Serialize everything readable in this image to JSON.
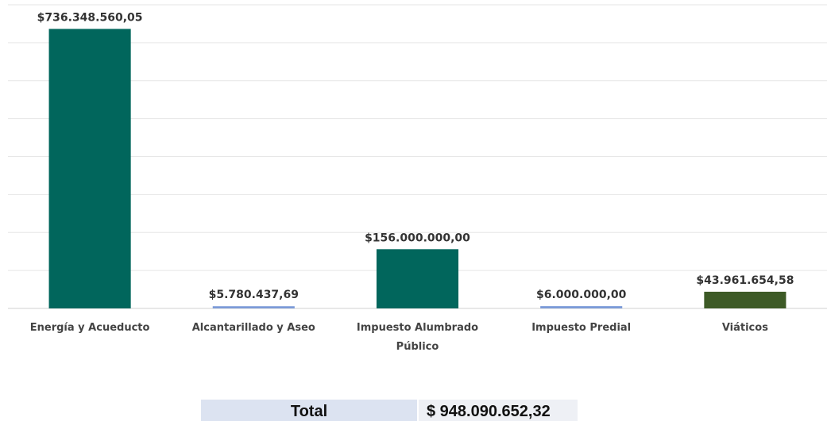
{
  "chart_data": {
    "type": "bar",
    "categories": [
      "Energía y Acueducto",
      "Alcantarillado y Aseo",
      "Impuesto Alumbrado Público",
      "Impuesto Predial",
      "Viáticos"
    ],
    "values": [
      736348560.05,
      5780437.69,
      156000000,
      6000000,
      43961654.58
    ],
    "value_labels": [
      "$736.348.560,05",
      "$5.780.437,69",
      "$156.000.000,00",
      "$6.000.000,00",
      "$43.961.654,58"
    ],
    "colors": [
      "#01665c",
      "#7c9bd8",
      "#01665c",
      "#7c9bd8",
      "#3d5a26"
    ],
    "ylim": [
      0,
      800000000
    ],
    "yticks": [
      0,
      100000000,
      200000000,
      300000000,
      400000000,
      500000000,
      600000000,
      700000000,
      800000000
    ],
    "grid": true
  },
  "total": {
    "label": "Total",
    "value": "$ 948.090.652,32"
  }
}
